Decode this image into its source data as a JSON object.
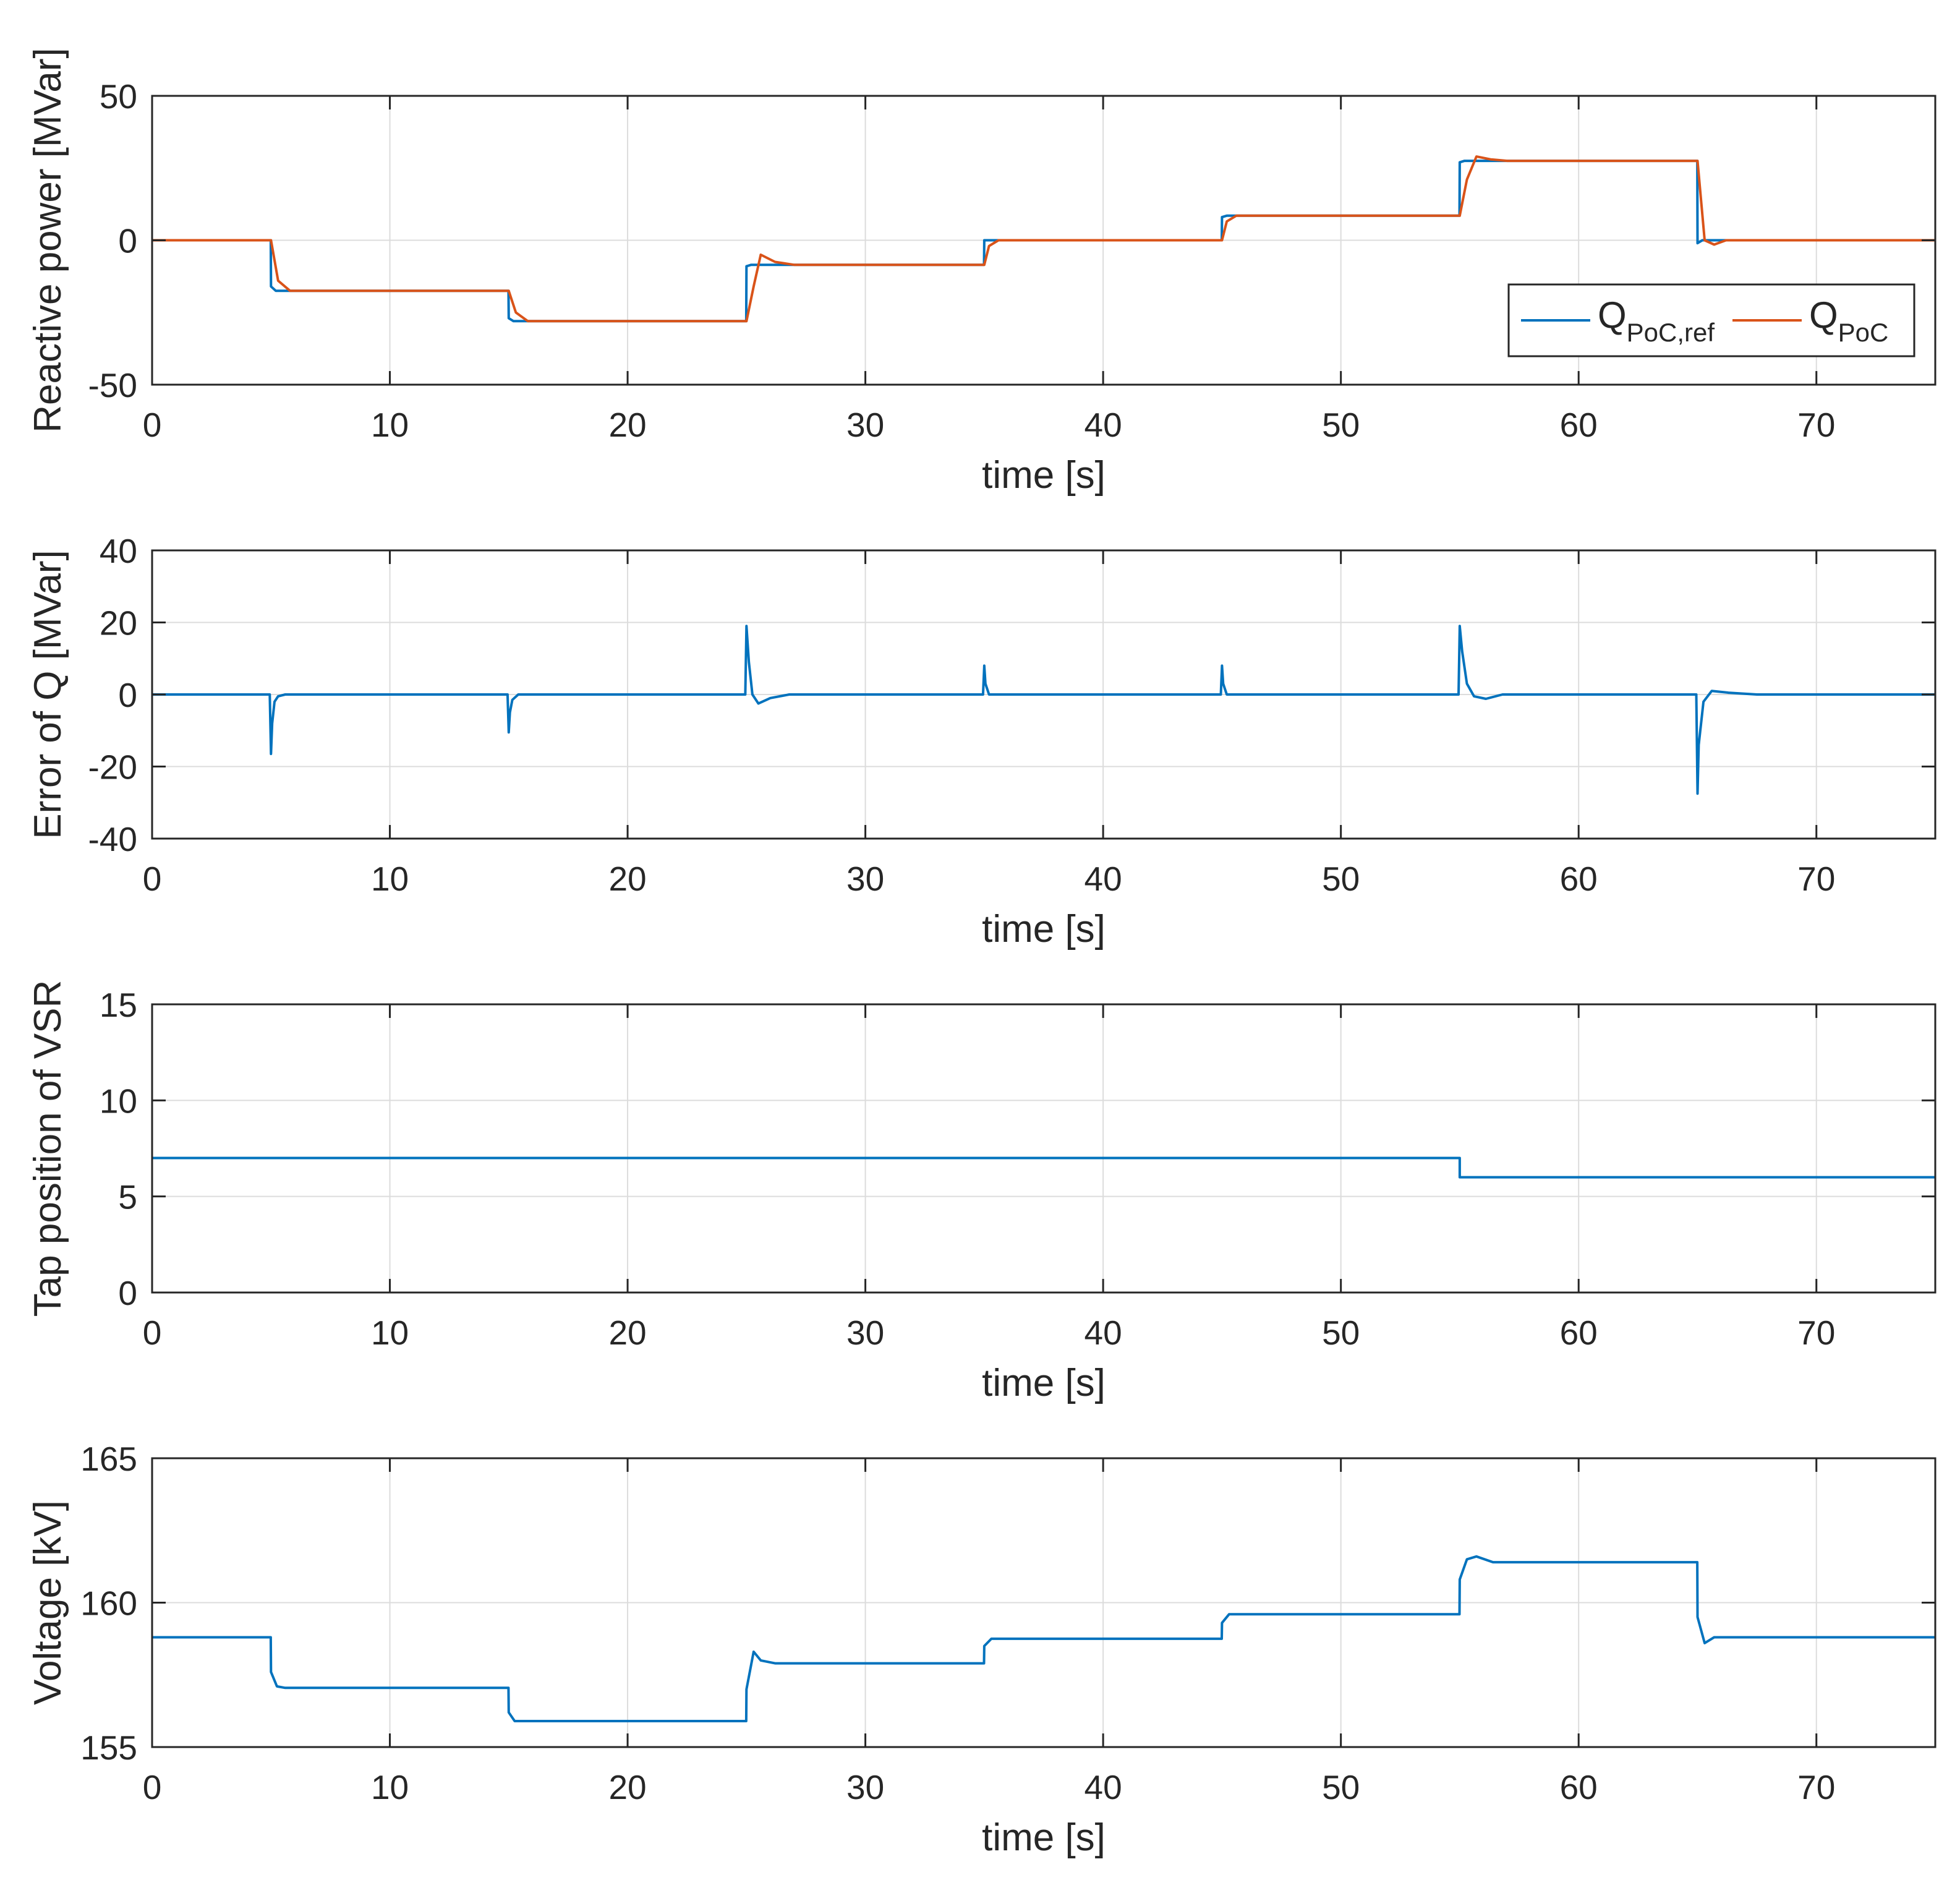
{
  "chart_data": [
    {
      "type": "line",
      "xlabel": "time [s]",
      "ylabel": "Reactive power [MVar]",
      "xlim": [
        0,
        75
      ],
      "ylim": [
        -50,
        50
      ],
      "xticks": [
        0,
        10,
        20,
        30,
        40,
        50,
        60,
        70
      ],
      "yticks": [
        -50,
        0,
        50
      ],
      "grid": true,
      "legend": {
        "placement": "bottom-right",
        "entries": [
          {
            "main": "Q",
            "sub": "PoC,ref",
            "series": 0
          },
          {
            "main": "Q",
            "sub": "PoC",
            "series": 1
          }
        ]
      },
      "series": [
        {
          "name": "Q_PoC,ref",
          "color": "#0072BD",
          "x": [
            0,
            4.99,
            5.0,
            5.2,
            14.99,
            15.0,
            15.2,
            24.99,
            25.0,
            25.2,
            34.99,
            35.0,
            35.2,
            44.99,
            45.0,
            45.2,
            54.99,
            55.0,
            55.2,
            64.99,
            65.0,
            65.2,
            75
          ],
          "y": [
            0,
            0,
            -16,
            -17.5,
            -17.5,
            -27,
            -28,
            -28,
            -9,
            -8.5,
            -8.5,
            0,
            0,
            0,
            8,
            8.5,
            8.5,
            27,
            27.5,
            27.5,
            -1,
            0,
            0
          ]
        },
        {
          "name": "Q_PoC",
          "color": "#D95319",
          "x": [
            0,
            5.0,
            5.3,
            5.8,
            15.0,
            15.3,
            15.8,
            25.0,
            25.3,
            25.6,
            26.2,
            27,
            35.0,
            35.2,
            35.6,
            45.0,
            45.2,
            45.6,
            55.0,
            55.3,
            55.7,
            56.3,
            57,
            65.0,
            65.3,
            65.7,
            66.2,
            75
          ],
          "y": [
            0,
            0,
            -14,
            -17.5,
            -17.5,
            -25,
            -28,
            -28,
            -16,
            -5,
            -7.5,
            -8.5,
            -8.5,
            -2,
            0,
            0,
            6.5,
            8.5,
            8.5,
            21,
            29,
            28,
            27.5,
            27.5,
            0,
            -1.5,
            0,
            0
          ]
        }
      ]
    },
    {
      "type": "line",
      "xlabel": "time [s]",
      "ylabel": "Error of Q [MVar]",
      "xlim": [
        0,
        75
      ],
      "ylim": [
        -40,
        40
      ],
      "xticks": [
        0,
        10,
        20,
        30,
        40,
        50,
        60,
        70
      ],
      "yticks": [
        -40,
        -20,
        0,
        20,
        40
      ],
      "grid": true,
      "series": [
        {
          "name": "Error of Q",
          "color": "#0072BD",
          "x": [
            0,
            4.95,
            5.0,
            5.05,
            5.15,
            5.3,
            5.6,
            14.95,
            15.0,
            15.05,
            15.15,
            15.4,
            24.95,
            25.0,
            25.1,
            25.25,
            25.5,
            26.0,
            26.8,
            34.95,
            35.0,
            35.05,
            35.2,
            44.95,
            45.0,
            45.05,
            45.2,
            54.95,
            55.0,
            55.1,
            55.3,
            55.6,
            56.1,
            56.8,
            64.95,
            65.0,
            65.05,
            65.25,
            65.6,
            66.3,
            67.5,
            75
          ],
          "y": [
            0,
            0,
            -16.5,
            -8,
            -2,
            -0.5,
            0,
            0,
            -10.5,
            -5,
            -1.5,
            0,
            0,
            19,
            9,
            0,
            -2.5,
            -1,
            0,
            0,
            8,
            3,
            0,
            0,
            8,
            3,
            0,
            0,
            19,
            12,
            3,
            -0.5,
            -1.2,
            0,
            0,
            -27.5,
            -14,
            -2,
            1,
            0.5,
            0,
            0
          ]
        }
      ]
    },
    {
      "type": "line",
      "xlabel": "time [s]",
      "ylabel": "Tap position of VSR",
      "xlim": [
        0,
        75
      ],
      "ylim": [
        0,
        15
      ],
      "xticks": [
        0,
        10,
        20,
        30,
        40,
        50,
        60,
        70
      ],
      "yticks": [
        0,
        5,
        10,
        15
      ],
      "grid": true,
      "series": [
        {
          "name": "Tap position",
          "color": "#0072BD",
          "x": [
            0,
            55.0,
            55.0,
            75
          ],
          "y": [
            7,
            7,
            6,
            6
          ]
        }
      ]
    },
    {
      "type": "line",
      "xlabel": "time [s]",
      "ylabel": "Voltage [kV]",
      "xlim": [
        0,
        75
      ],
      "ylim": [
        155,
        165
      ],
      "xticks": [
        0,
        10,
        20,
        30,
        40,
        50,
        60,
        70
      ],
      "yticks": [
        155,
        160,
        165
      ],
      "grid": true,
      "series": [
        {
          "name": "Voltage",
          "color": "#0072BD",
          "x": [
            0,
            4.99,
            5.0,
            5.25,
            5.6,
            14.99,
            15.0,
            15.25,
            15.6,
            24.99,
            25.0,
            25.3,
            25.6,
            26.2,
            34.99,
            35.0,
            35.3,
            44.99,
            45.0,
            45.3,
            54.99,
            55.0,
            55.3,
            55.7,
            56.4,
            64.99,
            65.0,
            65.3,
            65.7,
            75
          ],
          "y": [
            158.8,
            158.8,
            157.6,
            157.1,
            157.05,
            157.05,
            156.2,
            155.9,
            155.9,
            155.9,
            157.0,
            158.3,
            158.0,
            157.9,
            157.9,
            158.5,
            158.75,
            158.75,
            159.3,
            159.6,
            159.6,
            160.8,
            161.5,
            161.6,
            161.4,
            161.4,
            159.5,
            158.6,
            158.8,
            158.8
          ]
        }
      ]
    }
  ]
}
